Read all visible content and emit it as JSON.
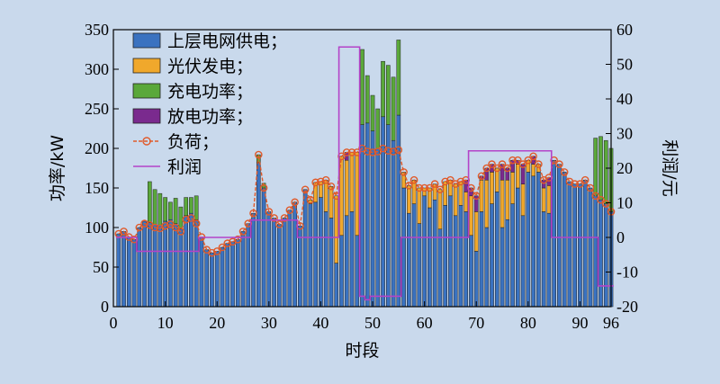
{
  "chart_data": {
    "type": "bar",
    "stacked": true,
    "xlabel": "时段",
    "ylabel_left": "功率/kW",
    "ylabel_right": "利润/元",
    "xlim": [
      0,
      96
    ],
    "ylim_left": [
      0,
      350
    ],
    "ylim_right": [
      -20,
      60
    ],
    "x_ticks": [
      0,
      10,
      20,
      30,
      40,
      50,
      60,
      70,
      80,
      90,
      96
    ],
    "y_ticks_left": [
      0,
      50,
      100,
      150,
      200,
      250,
      300,
      350
    ],
    "y_ticks_right": [
      -20,
      -10,
      0,
      10,
      20,
      30,
      40,
      50,
      60
    ],
    "legend_position": "top-left",
    "x": [
      1,
      2,
      3,
      4,
      5,
      6,
      7,
      8,
      9,
      10,
      11,
      12,
      13,
      14,
      15,
      16,
      17,
      18,
      19,
      20,
      21,
      22,
      23,
      24,
      25,
      26,
      27,
      28,
      29,
      30,
      31,
      32,
      33,
      34,
      35,
      36,
      37,
      38,
      39,
      40,
      41,
      42,
      43,
      44,
      45,
      46,
      47,
      48,
      49,
      50,
      51,
      52,
      53,
      54,
      55,
      56,
      57,
      58,
      59,
      60,
      61,
      62,
      63,
      64,
      65,
      66,
      67,
      68,
      69,
      70,
      71,
      72,
      73,
      74,
      75,
      76,
      77,
      78,
      79,
      80,
      81,
      82,
      83,
      84,
      85,
      86,
      87,
      88,
      89,
      90,
      91,
      92,
      93,
      94,
      95,
      96
    ],
    "series": [
      {
        "name": "上层电网供电；",
        "kind": "bar",
        "color": "#3a72c0",
        "values": [
          92,
          95,
          88,
          85,
          100,
          108,
          106,
          104,
          103,
          108,
          110,
          105,
          98,
          115,
          118,
          110,
          88,
          72,
          68,
          70,
          75,
          80,
          82,
          85,
          95,
          105,
          118,
          182,
          150,
          120,
          112,
          104,
          112,
          122,
          132,
          102,
          148,
          130,
          132,
          138,
          120,
          112,
          55,
          90,
          115,
          120,
          90,
          230,
          232,
          222,
          200,
          240,
          230,
          210,
          242,
          150,
          118,
          130,
          105,
          140,
          125,
          135,
          98,
          128,
          140,
          115,
          128,
          120,
          90,
          70,
          120,
          100,
          130,
          145,
          100,
          110,
          130,
          150,
          115,
          170,
          165,
          170,
          120,
          118,
          185,
          180,
          170,
          158,
          155,
          155,
          160,
          150,
          140,
          135,
          130,
          120
        ]
      },
      {
        "name": "光伏发电；",
        "kind": "bar",
        "color": "#f0a82c",
        "values": [
          0,
          0,
          0,
          0,
          0,
          0,
          0,
          0,
          0,
          0,
          0,
          0,
          0,
          0,
          0,
          0,
          0,
          0,
          0,
          0,
          0,
          0,
          0,
          0,
          0,
          0,
          0,
          0,
          0,
          0,
          0,
          0,
          0,
          0,
          0,
          0,
          0,
          5,
          25,
          20,
          40,
          40,
          85,
          100,
          70,
          75,
          105,
          0,
          0,
          0,
          0,
          0,
          0,
          0,
          0,
          20,
          35,
          30,
          45,
          10,
          25,
          20,
          50,
          30,
          20,
          40,
          30,
          25,
          50,
          50,
          40,
          60,
          40,
          30,
          60,
          50,
          40,
          30,
          40,
          15,
          15,
          10,
          30,
          35,
          0,
          0,
          0,
          0,
          0,
          0,
          0,
          0,
          0,
          0,
          0,
          0
        ]
      },
      {
        "name": "充电功率；",
        "kind": "bar",
        "color": "#5aa83a",
        "values": [
          0,
          0,
          0,
          0,
          0,
          0,
          52,
          44,
          40,
          30,
          22,
          32,
          28,
          23,
          20,
          30,
          0,
          0,
          0,
          0,
          0,
          0,
          0,
          0,
          0,
          0,
          0,
          10,
          6,
          0,
          0,
          0,
          0,
          0,
          0,
          0,
          0,
          0,
          0,
          0,
          0,
          0,
          0,
          0,
          0,
          0,
          0,
          95,
          60,
          45,
          50,
          70,
          75,
          80,
          95,
          0,
          0,
          0,
          0,
          0,
          0,
          0,
          0,
          0,
          0,
          0,
          0,
          0,
          0,
          0,
          0,
          0,
          0,
          0,
          0,
          0,
          0,
          0,
          0,
          0,
          0,
          0,
          0,
          0,
          0,
          0,
          0,
          0,
          0,
          0,
          0,
          0,
          73,
          80,
          80,
          80
        ]
      },
      {
        "name": "放电功率；",
        "kind": "bar",
        "color": "#7a2a8e",
        "values": [
          0,
          0,
          0,
          0,
          0,
          0,
          0,
          0,
          0,
          0,
          0,
          0,
          0,
          0,
          0,
          0,
          0,
          0,
          0,
          0,
          0,
          0,
          0,
          0,
          0,
          0,
          0,
          0,
          0,
          0,
          0,
          0,
          0,
          0,
          0,
          0,
          0,
          0,
          0,
          0,
          0,
          0,
          0,
          0,
          10,
          0,
          0,
          0,
          0,
          0,
          0,
          0,
          0,
          0,
          0,
          0,
          0,
          0,
          0,
          0,
          0,
          0,
          0,
          0,
          0,
          0,
          0,
          15,
          10,
          20,
          5,
          15,
          10,
          0,
          20,
          15,
          15,
          5,
          25,
          0,
          10,
          0,
          10,
          10,
          0,
          0,
          0,
          0,
          0,
          0,
          0,
          0,
          0,
          0,
          0,
          0
        ]
      },
      {
        "name": "负荷；",
        "kind": "line-marker",
        "color": "#e05a2a",
        "values": [
          92,
          95,
          88,
          85,
          100,
          105,
          103,
          100,
          99,
          102,
          104,
          100,
          95,
          110,
          112,
          105,
          88,
          72,
          68,
          70,
          75,
          80,
          82,
          85,
          95,
          105,
          118,
          192,
          150,
          120,
          112,
          104,
          112,
          122,
          132,
          102,
          148,
          135,
          157,
          158,
          160,
          152,
          140,
          190,
          195,
          195,
          195,
          200,
          196,
          195,
          196,
          200,
          197,
          196,
          198,
          170,
          153,
          160,
          150,
          150,
          150,
          155,
          148,
          158,
          160,
          155,
          158,
          160,
          150,
          140,
          165,
          175,
          180,
          175,
          180,
          175,
          185,
          185,
          180,
          185,
          190,
          180,
          160,
          163,
          185,
          180,
          170,
          158,
          155,
          155,
          160,
          150,
          140,
          135,
          130,
          120
        ]
      },
      {
        "name": "利润",
        "kind": "line",
        "color": "#b443c8",
        "values": [
          0,
          0,
          0,
          0,
          -4,
          -4,
          -4,
          -4,
          -4,
          -4,
          -4,
          -4,
          -4,
          -4,
          -4,
          -4,
          0,
          0,
          0,
          0,
          0,
          0,
          0,
          0,
          0,
          0,
          5,
          5,
          5,
          5,
          5,
          5,
          5,
          5,
          5,
          0,
          0,
          0,
          0,
          0,
          0,
          0,
          0,
          55,
          55,
          55,
          55,
          -17,
          -18,
          -17,
          -17,
          -17,
          -17,
          -17,
          -17,
          0,
          0,
          0,
          0,
          0,
          0,
          0,
          0,
          0,
          0,
          0,
          0,
          0,
          25,
          25,
          25,
          25,
          25,
          25,
          25,
          25,
          25,
          25,
          25,
          25,
          25,
          25,
          25,
          25,
          0,
          0,
          0,
          0,
          0,
          0,
          0,
          0,
          0,
          -14,
          -14,
          -14
        ]
      }
    ]
  }
}
